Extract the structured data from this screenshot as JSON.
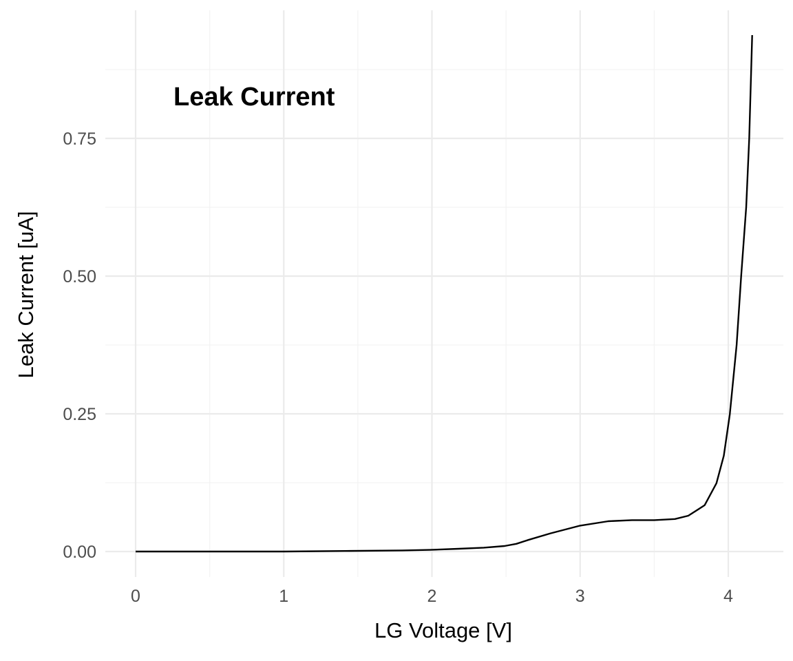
{
  "chart_data": {
    "type": "line",
    "title": "",
    "annotation": "Leak Current",
    "xlabel": "LG Voltage [V]",
    "ylabel": "Leak Current [uA]",
    "xlim": [
      -0.2,
      4.35
    ],
    "ylim": [
      -0.045,
      0.98
    ],
    "x_ticks": [
      0,
      1,
      2,
      3,
      4
    ],
    "x_tick_labels": [
      "0",
      "1",
      "2",
      "3",
      "4"
    ],
    "y_ticks": [
      0,
      0.25,
      0.5,
      0.75
    ],
    "y_tick_labels": [
      "0.00",
      "0.25",
      "0.50",
      "0.75"
    ],
    "grid": true,
    "line_color": "#000000",
    "series": [
      {
        "x": [
          0,
          0.5,
          1.0,
          1.41,
          1.8,
          1.99,
          2.18,
          2.35,
          2.49,
          2.57,
          2.65,
          2.8,
          3.0,
          3.19,
          3.35,
          3.5,
          3.64,
          3.73,
          3.84,
          3.92,
          3.97,
          4.01,
          4.056,
          4.087,
          4.121,
          4.141,
          4.161
        ],
        "y": [
          0,
          0,
          0,
          0.001,
          0.002,
          0.003,
          0.005,
          0.007,
          0.01,
          0.014,
          0.021,
          0.033,
          0.047,
          0.055,
          0.057,
          0.057,
          0.059,
          0.065,
          0.084,
          0.124,
          0.174,
          0.249,
          0.375,
          0.5,
          0.625,
          0.75,
          0.9375
        ]
      }
    ]
  }
}
